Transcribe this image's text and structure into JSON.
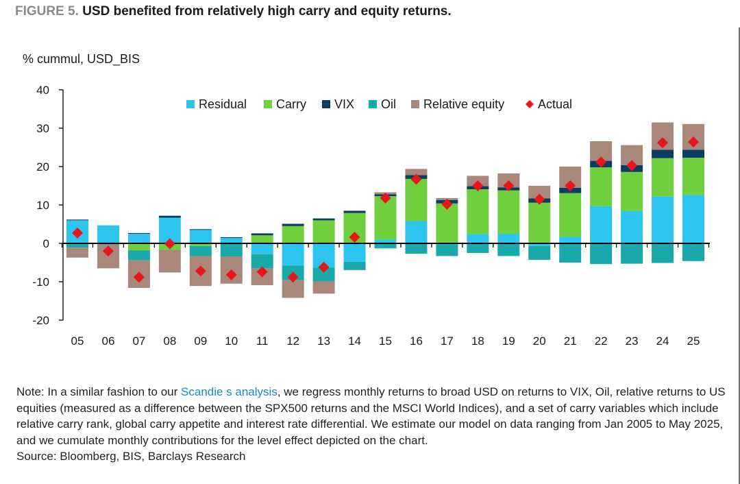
{
  "figure": {
    "label": "FIGURE 5.",
    "title": "USD benefited from relatively high carry and equity returns."
  },
  "note": {
    "text_before_link": "Note: In a similar fashion to our ",
    "link_text": "Scandie s analysis",
    "text_after_link": ", we regress monthly returns to broad USD on returns to VIX, Oil, relative returns to US equities (measured as a difference between the SPX500 returns and the MSCI World Indices), and a set of carry variables which include relative carry rank, global carry appetite and interest rate differential. We estimate our model on data ranging from Jan 2005 to May 2025, and we cumulate monthly contributions for the level effect depicted on the chart.",
    "source": "Source: Bloomberg, BIS, Barclays Research"
  },
  "chart_data": {
    "type": "bar",
    "stacked": true,
    "ylabel": "% cummul, USD_BIS",
    "ylim": [
      -20,
      40
    ],
    "yticks": [
      -20,
      -10,
      0,
      10,
      20,
      30,
      40
    ],
    "grid": false,
    "legend_position": "top",
    "categories": [
      "05",
      "06",
      "07",
      "08",
      "09",
      "10",
      "11",
      "12",
      "13",
      "14",
      "15",
      "16",
      "17",
      "18",
      "19",
      "20",
      "21",
      "22",
      "23",
      "24",
      "25"
    ],
    "series": [
      {
        "name": "Residual",
        "color": "#2ec4f0",
        "values": [
          6.0,
          4.7,
          2.5,
          6.7,
          3.5,
          1.4,
          -2.8,
          -5.8,
          -6.3,
          -4.8,
          1.0,
          5.8,
          -0.2,
          2.4,
          2.5,
          -0.7,
          1.7,
          9.7,
          8.4,
          12.2,
          12.6
        ]
      },
      {
        "name": "Carry",
        "color": "#6fcf3c",
        "values": [
          -0.2,
          0,
          -1.8,
          -1.7,
          -0.7,
          -0.1,
          2.1,
          4.5,
          6.0,
          7.9,
          11.3,
          11.0,
          10.4,
          11.7,
          11.3,
          10.6,
          11.4,
          10.1,
          10.2,
          10.0,
          9.7
        ]
      },
      {
        "name": "VIX",
        "color": "#0d3c61",
        "values": [
          0.2,
          0,
          0.2,
          0.5,
          0.2,
          0.2,
          0.5,
          0.6,
          0.5,
          0.6,
          0.5,
          1.0,
          0.9,
          0.8,
          0.8,
          1.1,
          1.4,
          1.7,
          1.8,
          2.2,
          2.1
        ]
      },
      {
        "name": "Oil",
        "color": "#1aa9aa",
        "values": [
          -0.9,
          -0.3,
          -2.6,
          0,
          -2.6,
          -3.3,
          -3.7,
          -3.8,
          -3.6,
          -2.1,
          -1.3,
          -2.7,
          -3.1,
          -2.5,
          -3.3,
          -3.6,
          -5.0,
          -5.4,
          -5.3,
          -5.1,
          -4.6
        ]
      },
      {
        "name": "Relative equity",
        "color": "#a9877a",
        "values": [
          -2.6,
          -6.2,
          -7.2,
          -5.9,
          -7.8,
          -7.1,
          -4.4,
          -4.6,
          -3.2,
          -0.1,
          0.5,
          1.6,
          0.5,
          2.7,
          3.6,
          3.3,
          5.5,
          5.1,
          5.2,
          7.1,
          6.7
        ]
      }
    ],
    "actual": {
      "name": "Actual",
      "color": "#e8161b",
      "values": [
        2.7,
        -2.0,
        -8.8,
        -0.1,
        -7.2,
        -8.2,
        -7.4,
        -8.8,
        -6.2,
        1.6,
        11.8,
        16.7,
        10.2,
        15.0,
        15.0,
        11.5,
        15.0,
        21.2,
        20.3,
        26.2,
        26.4
      ]
    }
  }
}
